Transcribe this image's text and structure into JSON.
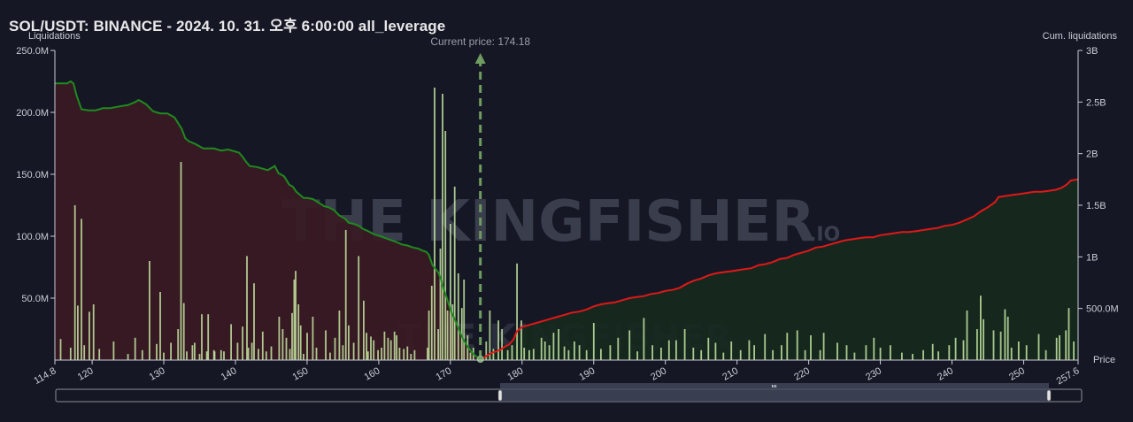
{
  "header": {
    "title": "SOL/USDT: BINANCE - 2024. 10. 31. 오후 6:00:00 all_leverage"
  },
  "watermark": {
    "text": "THE KINGFISHER",
    "suffix": ".IO"
  },
  "colors": {
    "background": "#151824",
    "short_cum_line": "#1f8a1f",
    "long_cum_line": "#e01818",
    "bars": "#c6e6a2",
    "current_price_marker": "#6f9c60"
  },
  "chart_data": {
    "type": "bar",
    "title": "",
    "xlabel": "Price",
    "ylabel_left": "Liquidations",
    "ylabel_right": "Cum. liquidations",
    "xlim": [
      114.8,
      257.6
    ],
    "ylim_left": [
      0,
      250000000
    ],
    "ylim_right": [
      0,
      3000000000
    ],
    "x_ticks": [
      "114.8",
      "120",
      "130",
      "140",
      "150",
      "160",
      "170",
      "180",
      "190",
      "200",
      "210",
      "220",
      "230",
      "240",
      "250",
      "257.6"
    ],
    "x_tick_values": [
      114.8,
      120,
      130,
      140,
      150,
      160,
      170,
      180,
      190,
      200,
      210,
      220,
      230,
      240,
      250,
      257.6
    ],
    "y_left_ticks": [
      "250.0M",
      "200.0M",
      "150.0M",
      "100.0M",
      "50.0M"
    ],
    "y_left_tick_values": [
      250000000,
      200000000,
      150000000,
      100000000,
      50000000
    ],
    "y_right_ticks": [
      "3B",
      "2.5B",
      "2B",
      "1.5B",
      "1B",
      "500.0M"
    ],
    "y_right_tick_values": [
      3000000000,
      2500000000,
      2000000000,
      1500000000,
      1000000000,
      500000000
    ],
    "current_price": 174.18,
    "current_price_label": "Current price: 174.18",
    "bars": [
      [
        115.6,
        17
      ],
      [
        117.0,
        10
      ],
      [
        117.6,
        125
      ],
      [
        118.0,
        44
      ],
      [
        118.5,
        114
      ],
      [
        118.9,
        12
      ],
      [
        119.6,
        39
      ],
      [
        120.2,
        45
      ],
      [
        121.0,
        9
      ],
      [
        123.0,
        15
      ],
      [
        125.0,
        5
      ],
      [
        126.0,
        18
      ],
      [
        127.0,
        8
      ],
      [
        128.0,
        80
      ],
      [
        129.0,
        13
      ],
      [
        129.5,
        55
      ],
      [
        130.0,
        6
      ],
      [
        131.0,
        14
      ],
      [
        132.0,
        25
      ],
      [
        132.8,
        46
      ],
      [
        133.2,
        7
      ],
      [
        134.0,
        12
      ],
      [
        135.0,
        5
      ],
      [
        136.0,
        7
      ],
      [
        137.0,
        8
      ],
      [
        132.4,
        160
      ],
      [
        134.3,
        14
      ],
      [
        135.3,
        37
      ],
      [
        136.2,
        37
      ],
      [
        137.1,
        7
      ],
      [
        138.0,
        8
      ],
      [
        138.4,
        7
      ],
      [
        139.4,
        29
      ],
      [
        140.3,
        14
      ],
      [
        141.0,
        27
      ],
      [
        141.6,
        84
      ],
      [
        141.8,
        10
      ],
      [
        142.3,
        14
      ],
      [
        142.6,
        62
      ],
      [
        143.2,
        9
      ],
      [
        143.8,
        23
      ],
      [
        144.3,
        7
      ],
      [
        145.0,
        11
      ],
      [
        146.1,
        35
      ],
      [
        146.6,
        25
      ],
      [
        147.1,
        18
      ],
      [
        147.6,
        9
      ],
      [
        147.9,
        38
      ],
      [
        148.2,
        65
      ],
      [
        148.4,
        72
      ],
      [
        148.8,
        45
      ],
      [
        149.1,
        28
      ],
      [
        149.5,
        5
      ],
      [
        150.0,
        22
      ],
      [
        150.8,
        35
      ],
      [
        151.3,
        10
      ],
      [
        152.6,
        24
      ],
      [
        153.2,
        6
      ],
      [
        153.9,
        18
      ],
      [
        154.5,
        40
      ],
      [
        155.0,
        12
      ],
      [
        155.4,
        105
      ],
      [
        155.8,
        28
      ],
      [
        156.5,
        14
      ],
      [
        157.2,
        84
      ],
      [
        157.9,
        48
      ],
      [
        158.3,
        22
      ],
      [
        158.5,
        7
      ],
      [
        158.9,
        19
      ],
      [
        159.3,
        16
      ],
      [
        159.9,
        8
      ],
      [
        160.4,
        10
      ],
      [
        160.8,
        23
      ],
      [
        161.3,
        18
      ],
      [
        161.7,
        16
      ],
      [
        162.2,
        23
      ],
      [
        162.5,
        20
      ],
      [
        162.9,
        10
      ],
      [
        163.5,
        9
      ],
      [
        164.0,
        11
      ],
      [
        164.5,
        5
      ],
      [
        165.0,
        8
      ],
      [
        167.0,
        40
      ],
      [
        166.8,
        10
      ],
      [
        167.4,
        60
      ],
      [
        167.8,
        220
      ],
      [
        168.3,
        25
      ],
      [
        168.6,
        90
      ],
      [
        168.9,
        215
      ],
      [
        169.3,
        185
      ],
      [
        169.6,
        40
      ],
      [
        170.0,
        110
      ],
      [
        170.3,
        45
      ],
      [
        170.6,
        140
      ],
      [
        171.1,
        70
      ],
      [
        171.6,
        42
      ],
      [
        171.9,
        65
      ],
      [
        172.4,
        20
      ],
      [
        172.8,
        6
      ],
      [
        173.2,
        10
      ],
      [
        175.0,
        15
      ],
      [
        175.5,
        40
      ],
      [
        176.0,
        9
      ],
      [
        176.7,
        32
      ],
      [
        177.2,
        25
      ],
      [
        178.0,
        8
      ],
      [
        178.6,
        12
      ],
      [
        179.3,
        78
      ],
      [
        179.9,
        32
      ],
      [
        180.3,
        10
      ],
      [
        181.0,
        8
      ],
      [
        181.6,
        9
      ],
      [
        182.7,
        18
      ],
      [
        183.2,
        15
      ],
      [
        183.8,
        12
      ],
      [
        184.4,
        22
      ],
      [
        185.1,
        25
      ],
      [
        185.9,
        11
      ],
      [
        186.5,
        8
      ],
      [
        187.3,
        15
      ],
      [
        188.0,
        12
      ],
      [
        189.0,
        8
      ],
      [
        190.0,
        30
      ],
      [
        191.0,
        9
      ],
      [
        192.3,
        12
      ],
      [
        193.4,
        18
      ],
      [
        195.0,
        24
      ],
      [
        196.1,
        7
      ],
      [
        197.0,
        34
      ],
      [
        198.2,
        12
      ],
      [
        199.4,
        10
      ],
      [
        200.5,
        16
      ],
      [
        201.5,
        16
      ],
      [
        202.7,
        25
      ],
      [
        203.9,
        10
      ],
      [
        205.0,
        8
      ],
      [
        206.0,
        18
      ],
      [
        207.0,
        14
      ],
      [
        208.1,
        6
      ],
      [
        209.2,
        15
      ],
      [
        210.5,
        8
      ],
      [
        211.7,
        16
      ],
      [
        212.4,
        12
      ],
      [
        213.9,
        21
      ],
      [
        215.0,
        8
      ],
      [
        216.2,
        12
      ],
      [
        217.0,
        22
      ],
      [
        218.4,
        24
      ],
      [
        219.5,
        8
      ],
      [
        220.3,
        20
      ],
      [
        221.6,
        8
      ],
      [
        222.1,
        22
      ],
      [
        224.0,
        14
      ],
      [
        225.3,
        12
      ],
      [
        226.4,
        6
      ],
      [
        228.0,
        12
      ],
      [
        229.1,
        18
      ],
      [
        230.0,
        10
      ],
      [
        231.4,
        12
      ],
      [
        233.0,
        6
      ],
      [
        234.5,
        5
      ],
      [
        236.0,
        8
      ],
      [
        237.3,
        13
      ],
      [
        238.1,
        7
      ],
      [
        239.6,
        12
      ],
      [
        240.5,
        18
      ],
      [
        241.6,
        16
      ],
      [
        242.1,
        40
      ],
      [
        243.5,
        25
      ],
      [
        244.0,
        52
      ],
      [
        244.4,
        33
      ],
      [
        245.8,
        24
      ],
      [
        246.8,
        23
      ],
      [
        247.4,
        41
      ],
      [
        247.8,
        35
      ],
      [
        248.3,
        10
      ],
      [
        249.3,
        15
      ],
      [
        250.4,
        12
      ],
      [
        252.1,
        21
      ],
      [
        253.1,
        8
      ],
      [
        254.6,
        18
      ],
      [
        255.0,
        20
      ],
      [
        255.9,
        24
      ],
      [
        256.3,
        42
      ],
      [
        257.0,
        15
      ]
    ],
    "short_cum": [
      [
        114.8,
        2.68
      ],
      [
        116.5,
        2.68
      ],
      [
        117.0,
        2.7
      ],
      [
        117.4,
        2.68
      ],
      [
        117.8,
        2.57
      ],
      [
        118.5,
        2.43
      ],
      [
        119.5,
        2.42
      ],
      [
        120.5,
        2.42
      ],
      [
        121.5,
        2.44
      ],
      [
        122.5,
        2.44
      ],
      [
        124.0,
        2.46
      ],
      [
        125.0,
        2.47
      ],
      [
        126.0,
        2.5
      ],
      [
        126.5,
        2.52
      ],
      [
        127.5,
        2.48
      ],
      [
        128.5,
        2.41
      ],
      [
        129.5,
        2.39
      ],
      [
        130.5,
        2.39
      ],
      [
        131.5,
        2.35
      ],
      [
        132.5,
        2.24
      ],
      [
        133.0,
        2.15
      ],
      [
        133.5,
        2.12
      ],
      [
        134.5,
        2.09
      ],
      [
        135.5,
        2.05
      ],
      [
        137.0,
        2.05
      ],
      [
        138.0,
        2.03
      ],
      [
        139.0,
        2.04
      ],
      [
        140.5,
        2.01
      ],
      [
        141.0,
        1.97
      ],
      [
        141.5,
        1.92
      ],
      [
        142.0,
        1.88
      ],
      [
        143.0,
        1.87
      ],
      [
        144.5,
        1.84
      ],
      [
        145.5,
        1.88
      ],
      [
        146.0,
        1.81
      ],
      [
        146.8,
        1.78
      ],
      [
        147.5,
        1.7
      ],
      [
        148.0,
        1.68
      ],
      [
        148.5,
        1.63
      ],
      [
        149.0,
        1.6
      ],
      [
        149.5,
        1.57
      ],
      [
        150.0,
        1.57
      ],
      [
        150.8,
        1.56
      ],
      [
        151.5,
        1.53
      ],
      [
        152.4,
        1.49
      ],
      [
        153.0,
        1.48
      ],
      [
        153.8,
        1.45
      ],
      [
        154.5,
        1.4
      ],
      [
        155.3,
        1.37
      ],
      [
        155.8,
        1.33
      ],
      [
        156.5,
        1.32
      ],
      [
        157.2,
        1.3
      ],
      [
        157.8,
        1.27
      ],
      [
        158.5,
        1.25
      ],
      [
        159.3,
        1.22
      ],
      [
        160.2,
        1.2
      ],
      [
        161.0,
        1.18
      ],
      [
        161.8,
        1.16
      ],
      [
        162.6,
        1.14
      ],
      [
        163.2,
        1.12
      ],
      [
        164.0,
        1.11
      ],
      [
        164.8,
        1.09
      ],
      [
        165.5,
        1.08
      ],
      [
        166.1,
        1.06
      ],
      [
        166.6,
        1.05
      ],
      [
        167.0,
        1.02
      ],
      [
        167.5,
        0.92
      ],
      [
        168.3,
        0.85
      ],
      [
        168.7,
        0.78
      ],
      [
        169.0,
        0.7
      ],
      [
        169.5,
        0.6
      ],
      [
        170.1,
        0.47
      ],
      [
        170.7,
        0.38
      ],
      [
        171.2,
        0.29
      ],
      [
        171.8,
        0.2
      ],
      [
        172.5,
        0.12
      ],
      [
        173.2,
        0.06
      ],
      [
        174.18,
        0.0
      ]
    ],
    "long_cum": [
      [
        174.18,
        0.0
      ],
      [
        174.8,
        0.03
      ],
      [
        175.5,
        0.06
      ],
      [
        176.2,
        0.08
      ],
      [
        177.0,
        0.1
      ],
      [
        177.6,
        0.13
      ],
      [
        178.2,
        0.15
      ],
      [
        178.8,
        0.2
      ],
      [
        179.3,
        0.28
      ],
      [
        180.0,
        0.32
      ],
      [
        181.0,
        0.34
      ],
      [
        182.0,
        0.36
      ],
      [
        183.0,
        0.38
      ],
      [
        184.0,
        0.4
      ],
      [
        185.0,
        0.42
      ],
      [
        186.0,
        0.44
      ],
      [
        187.0,
        0.46
      ],
      [
        188.0,
        0.47
      ],
      [
        189.0,
        0.49
      ],
      [
        190.0,
        0.52
      ],
      [
        191.0,
        0.54
      ],
      [
        192.0,
        0.55
      ],
      [
        193.0,
        0.56
      ],
      [
        194.0,
        0.58
      ],
      [
        195.0,
        0.6
      ],
      [
        196.0,
        0.61
      ],
      [
        197.0,
        0.62
      ],
      [
        198.0,
        0.64
      ],
      [
        199.0,
        0.65
      ],
      [
        200.0,
        0.67
      ],
      [
        201.0,
        0.68
      ],
      [
        202.0,
        0.7
      ],
      [
        203.0,
        0.74
      ],
      [
        204.0,
        0.77
      ],
      [
        205.0,
        0.79
      ],
      [
        206.0,
        0.82
      ],
      [
        207.0,
        0.84
      ],
      [
        208.0,
        0.85
      ],
      [
        209.0,
        0.86
      ],
      [
        210.0,
        0.87
      ],
      [
        211.0,
        0.88
      ],
      [
        212.0,
        0.89
      ],
      [
        213.0,
        0.92
      ],
      [
        214.0,
        0.93
      ],
      [
        215.0,
        0.95
      ],
      [
        216.0,
        0.98
      ],
      [
        217.0,
        0.99
      ],
      [
        218.0,
        1.02
      ],
      [
        219.0,
        1.04
      ],
      [
        220.0,
        1.06
      ],
      [
        221.0,
        1.09
      ],
      [
        222.0,
        1.1
      ],
      [
        223.0,
        1.12
      ],
      [
        224.0,
        1.14
      ],
      [
        225.0,
        1.16
      ],
      [
        226.0,
        1.17
      ],
      [
        227.0,
        1.18
      ],
      [
        228.0,
        1.19
      ],
      [
        229.0,
        1.19
      ],
      [
        230.0,
        1.21
      ],
      [
        231.0,
        1.22
      ],
      [
        232.0,
        1.23
      ],
      [
        233.0,
        1.24
      ],
      [
        234.0,
        1.24
      ],
      [
        235.0,
        1.25
      ],
      [
        236.0,
        1.26
      ],
      [
        237.0,
        1.27
      ],
      [
        238.0,
        1.28
      ],
      [
        239.0,
        1.3
      ],
      [
        240.0,
        1.31
      ],
      [
        241.0,
        1.33
      ],
      [
        242.0,
        1.36
      ],
      [
        243.0,
        1.39
      ],
      [
        244.0,
        1.44
      ],
      [
        245.0,
        1.48
      ],
      [
        246.0,
        1.53
      ],
      [
        246.5,
        1.58
      ],
      [
        247.5,
        1.59
      ],
      [
        248.5,
        1.6
      ],
      [
        249.5,
        1.61
      ],
      [
        250.5,
        1.62
      ],
      [
        251.5,
        1.63
      ],
      [
        252.5,
        1.63
      ],
      [
        253.5,
        1.64
      ],
      [
        254.5,
        1.65
      ],
      [
        255.3,
        1.67
      ],
      [
        256.0,
        1.7
      ],
      [
        256.6,
        1.74
      ],
      [
        257.6,
        1.75
      ]
    ]
  }
}
